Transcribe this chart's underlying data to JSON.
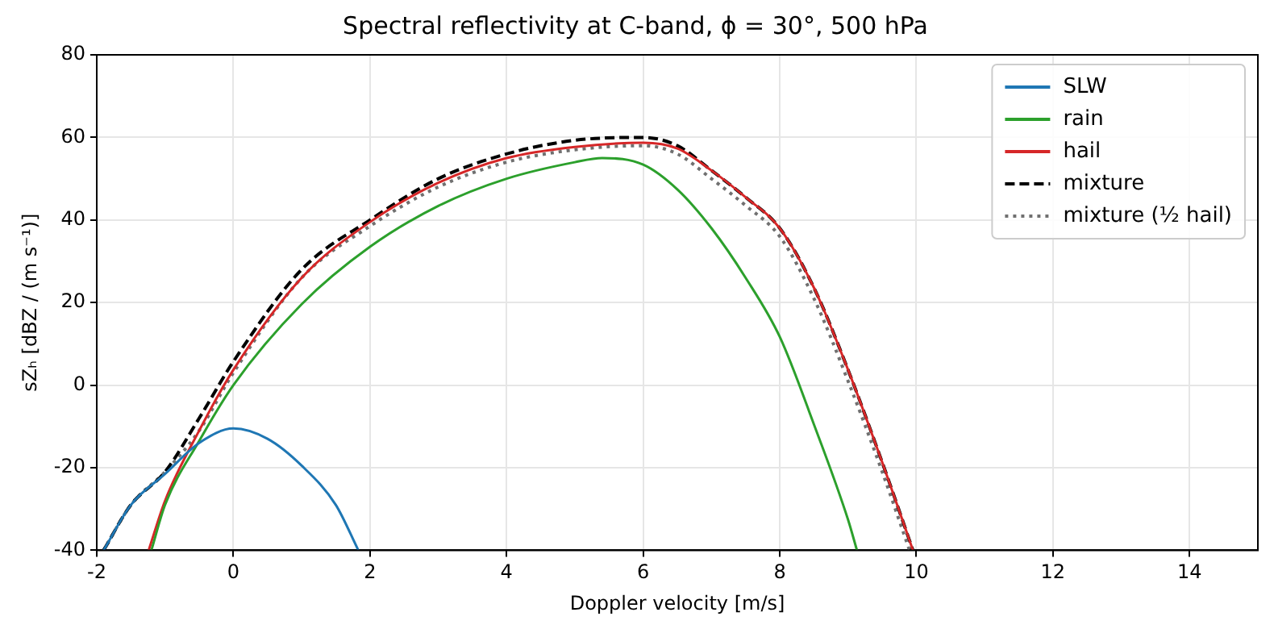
{
  "chart_data": {
    "type": "line",
    "title": "Spectral reflectivity at C-band, ϕ = 30°, 500 hPa",
    "xlabel": "Doppler velocity [m/s]",
    "ylabel": "sZₕ [dBZ / (m s⁻¹)]",
    "xlim": [
      -2,
      15
    ],
    "xticks": [
      -2,
      0,
      2,
      4,
      6,
      8,
      10,
      12,
      14
    ],
    "ylim": [
      -40,
      80
    ],
    "yticks": [
      -40,
      -20,
      0,
      20,
      40,
      60,
      80
    ],
    "grid": true,
    "legend": "top right",
    "marker": "none",
    "series": [
      {
        "name": "SLW",
        "color": "#1f77b4",
        "line_style": "solid",
        "x": [
          -1.9,
          -1.5,
          -1,
          -0.5,
          0,
          0.5,
          1,
          1.5,
          1.83
        ],
        "values": [
          -40,
          -29,
          -21.5,
          -14,
          -10.5,
          -13,
          -19.5,
          -29,
          -40
        ]
      },
      {
        "name": "rain",
        "color": "#2ca02c",
        "line_style": "solid",
        "x": [
          -1.2,
          -1,
          -0.5,
          0,
          1,
          2,
          3,
          4,
          5,
          5.4,
          6,
          6.5,
          7,
          7.5,
          8,
          8.5,
          9,
          9.13
        ],
        "values": [
          -40,
          -29,
          -13.5,
          0,
          19.6,
          33.5,
          43.4,
          50,
          54,
          55,
          53.4,
          47.4,
          38,
          26,
          11.7,
          -9.5,
          -32.6,
          -40
        ]
      },
      {
        "name": "hail",
        "color": "#d62728",
        "line_style": "solid",
        "x": [
          -1.24,
          -1,
          -0.5,
          0,
          1,
          2,
          3,
          4,
          5,
          6,
          6.5,
          7,
          7.5,
          8,
          8.5,
          9,
          9.5,
          9.95
        ],
        "values": [
          -40,
          -28,
          -11,
          3.7,
          26,
          39.5,
          49,
          55,
          57.7,
          58.7,
          57.3,
          52,
          45.5,
          38,
          23.6,
          3.7,
          -18.7,
          -40
        ]
      },
      {
        "name": "mixture",
        "color": "#000000",
        "line_style": "dashed",
        "x": [
          -1.9,
          -1.5,
          -1,
          -0.5,
          0,
          1,
          2,
          3,
          4,
          5,
          6,
          6.5,
          7,
          7.5,
          8,
          8.5,
          9,
          9.5,
          9.95
        ],
        "values": [
          -40,
          -29,
          -21,
          -8,
          5.7,
          28,
          40,
          50,
          56,
          59.3,
          60,
          58,
          52,
          45.5,
          38,
          23.6,
          3.7,
          -18.7,
          -40
        ]
      },
      {
        "name": "mixture (½ hail)",
        "color": "#707070",
        "line_style": "dotted",
        "x": [
          -1.9,
          -1.5,
          -1,
          -0.5,
          0,
          1,
          2,
          3,
          4,
          5,
          6,
          6.5,
          7,
          7.5,
          8,
          8.5,
          9,
          9.5,
          9.9
        ],
        "values": [
          -40,
          -29,
          -21,
          -11,
          3,
          26,
          38.5,
          48,
          54,
          57,
          58,
          56,
          50,
          43.5,
          36,
          21,
          1,
          -21,
          -40
        ]
      }
    ]
  }
}
